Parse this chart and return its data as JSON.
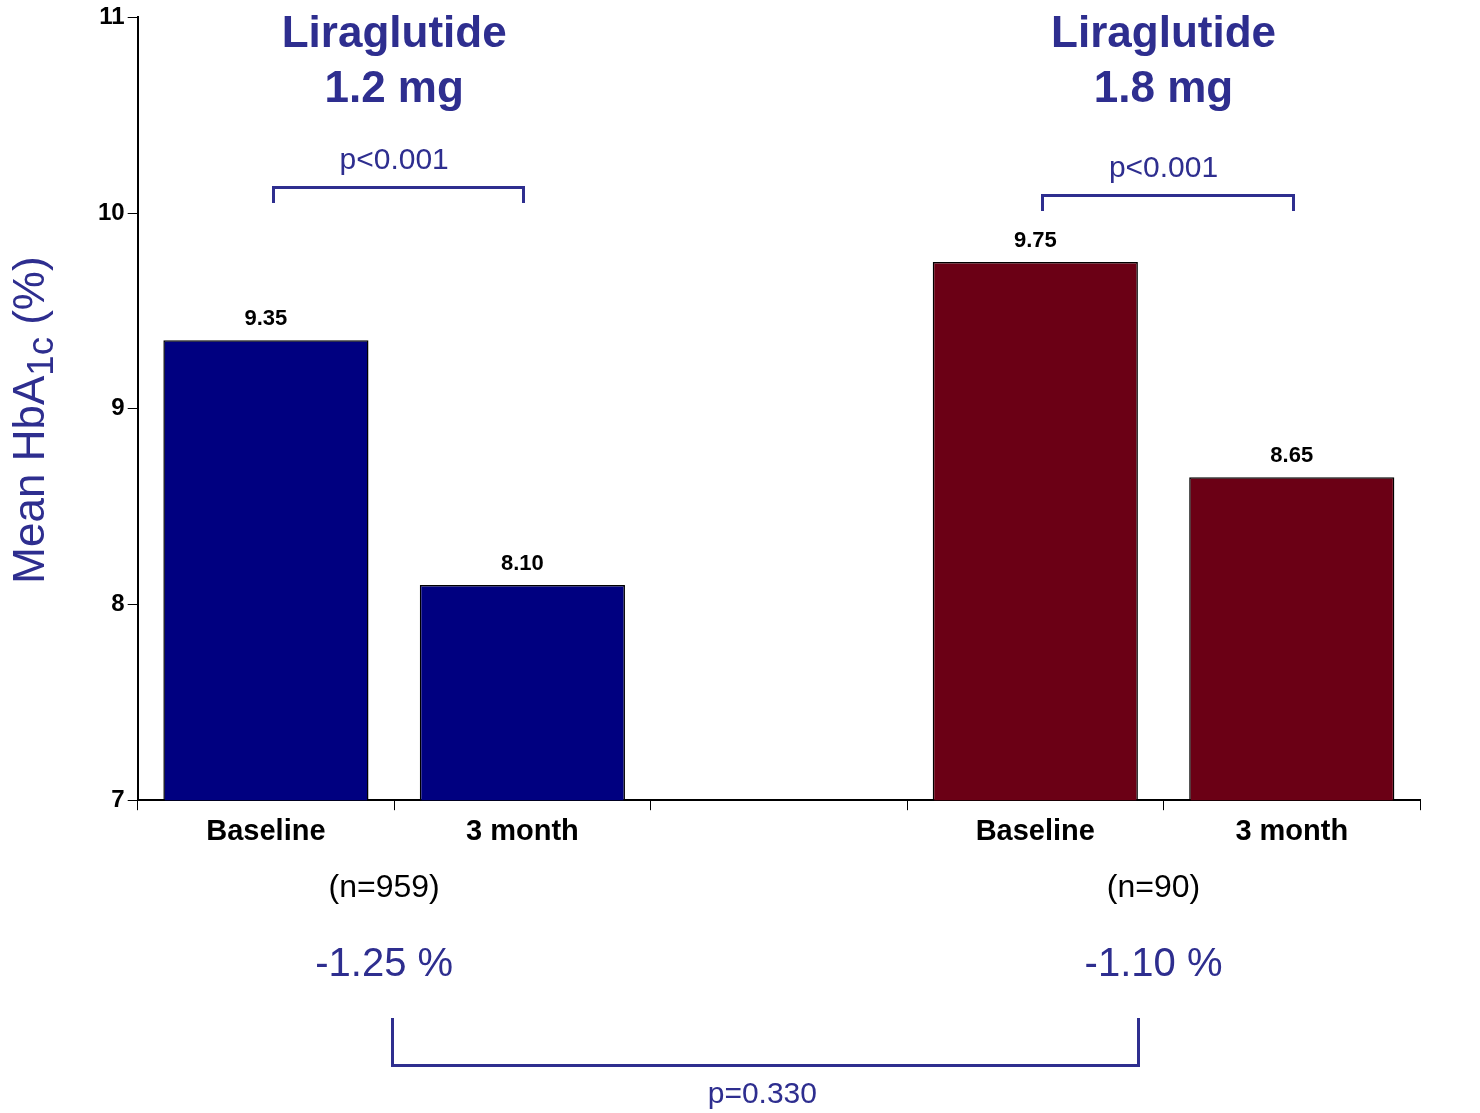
{
  "chart_data": {
    "type": "bar",
    "ylabel": "Mean HbA$_{1c}$ (%)",
    "categories": [
      "Baseline",
      "3 month",
      null,
      "Baseline",
      "3 month"
    ],
    "values": [
      9.35,
      8.1,
      null,
      9.75,
      8.65
    ],
    "colors": [
      "#000080",
      "#000080",
      "#000080",
      "#6b0015",
      "#6b0015"
    ],
    "value_labels": [
      "9.35",
      "8.10",
      null,
      "9.75",
      "8.65"
    ],
    "ylim": [
      7,
      11
    ],
    "yticks": [
      7,
      8,
      9,
      10,
      11
    ],
    "grid": false,
    "legend": false,
    "annotations": [
      "Liraglutide 1.2 mg",
      "Liraglutide 1.8 mg",
      "p<0.001",
      "p<0.001",
      "(n=959)",
      "(n=90)",
      "-1.25 %",
      "-1.10 %",
      "p=0.330"
    ]
  }
}
